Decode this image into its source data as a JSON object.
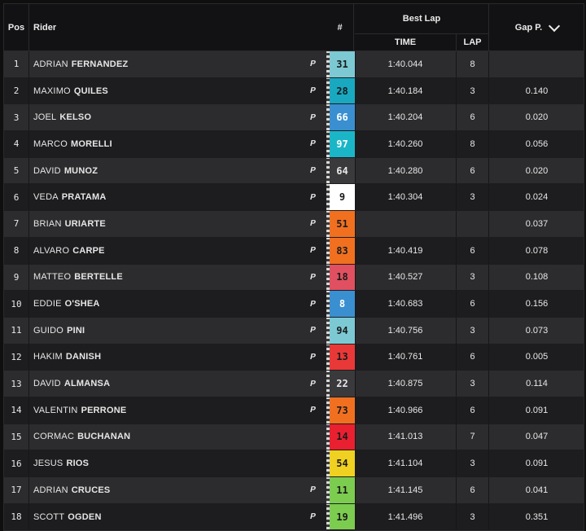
{
  "header": {
    "pos": "Pos",
    "rider": "Rider",
    "number": "#",
    "best_lap": "Best Lap",
    "time": "TIME",
    "lap": "LAP",
    "gap": "Gap P."
  },
  "tyre_symbol": "P",
  "riders": [
    {
      "pos": "1",
      "first": "ADRIAN",
      "last": "FERNANDEZ",
      "tyre": "P",
      "num": "31",
      "num_bg": "#7cc9d4",
      "num_fg": "#1a1a1a",
      "time": "1:40.044",
      "lap": "8",
      "gap": ""
    },
    {
      "pos": "2",
      "first": "MAXIMO",
      "last": "QUILES",
      "tyre": "P",
      "num": "28",
      "num_bg": "#1aa8c0",
      "num_fg": "#0f1a1c",
      "time": "1:40.184",
      "lap": "3",
      "gap": "0.140"
    },
    {
      "pos": "3",
      "first": "JOEL",
      "last": "KELSO",
      "tyre": "P",
      "num": "66",
      "num_bg": "#3a8fd0",
      "num_fg": "#ffffff",
      "time": "1:40.204",
      "lap": "6",
      "gap": "0.020"
    },
    {
      "pos": "4",
      "first": "MARCO",
      "last": "MORELLI",
      "tyre": "P",
      "num": "97",
      "num_bg": "#1ab6c8",
      "num_fg": "#ffffff",
      "time": "1:40.260",
      "lap": "8",
      "gap": "0.056"
    },
    {
      "pos": "5",
      "first": "DAVID",
      "last": "MUNOZ",
      "tyre": "P",
      "num": "64",
      "num_bg": "#3a3a3c",
      "num_fg": "#e8e8e8",
      "time": "1:40.280",
      "lap": "6",
      "gap": "0.020"
    },
    {
      "pos": "6",
      "first": "VEDA",
      "last": "PRATAMA",
      "tyre": "P",
      "num": "9",
      "num_bg": "#ffffff",
      "num_fg": "#1a1a1a",
      "time": "1:40.304",
      "lap": "3",
      "gap": "0.024"
    },
    {
      "pos": "7",
      "first": "BRIAN",
      "last": "URIARTE",
      "tyre": "P",
      "num": "51",
      "num_bg": "#f07020",
      "num_fg": "#1a1a1a",
      "time": "",
      "lap": "",
      "gap": "0.037"
    },
    {
      "pos": "8",
      "first": "ALVARO",
      "last": "CARPE",
      "tyre": "P",
      "num": "83",
      "num_bg": "#f07020",
      "num_fg": "#1a1a1a",
      "time": "1:40.419",
      "lap": "6",
      "gap": "0.078"
    },
    {
      "pos": "9",
      "first": "MATTEO",
      "last": "BERTELLE",
      "tyre": "P",
      "num": "18",
      "num_bg": "#e05060",
      "num_fg": "#1a1a1a",
      "time": "1:40.527",
      "lap": "3",
      "gap": "0.108"
    },
    {
      "pos": "10",
      "first": "EDDIE",
      "last": "O'SHEA",
      "tyre": "P",
      "num": "8",
      "num_bg": "#3a8fd0",
      "num_fg": "#ffffff",
      "time": "1:40.683",
      "lap": "6",
      "gap": "0.156"
    },
    {
      "pos": "11",
      "first": "GUIDO",
      "last": "PINI",
      "tyre": "P",
      "num": "94",
      "num_bg": "#7cc9d4",
      "num_fg": "#1a1a1a",
      "time": "1:40.756",
      "lap": "3",
      "gap": "0.073"
    },
    {
      "pos": "12",
      "first": "HAKIM",
      "last": "DANISH",
      "tyre": "P",
      "num": "13",
      "num_bg": "#e83838",
      "num_fg": "#1a1a1a",
      "time": "1:40.761",
      "lap": "6",
      "gap": "0.005"
    },
    {
      "pos": "13",
      "first": "DAVID",
      "last": "ALMANSA",
      "tyre": "P",
      "num": "22",
      "num_bg": "#3a3a3c",
      "num_fg": "#e8e8e8",
      "time": "1:40.875",
      "lap": "3",
      "gap": "0.114"
    },
    {
      "pos": "14",
      "first": "VALENTIN",
      "last": "PERRONE",
      "tyre": "P",
      "num": "73",
      "num_bg": "#f07020",
      "num_fg": "#1a1a1a",
      "time": "1:40.966",
      "lap": "6",
      "gap": "0.091"
    },
    {
      "pos": "15",
      "first": "CORMAC",
      "last": "BUCHANAN",
      "tyre": "",
      "num": "14",
      "num_bg": "#e82030",
      "num_fg": "#1a1a1a",
      "time": "1:41.013",
      "lap": "7",
      "gap": "0.047"
    },
    {
      "pos": "16",
      "first": "JESUS",
      "last": "RIOS",
      "tyre": "",
      "num": "54",
      "num_bg": "#f0d020",
      "num_fg": "#1a1a1a",
      "time": "1:41.104",
      "lap": "3",
      "gap": "0.091"
    },
    {
      "pos": "17",
      "first": "ADRIAN",
      "last": "CRUCES",
      "tyre": "P",
      "num": "11",
      "num_bg": "#7ccc50",
      "num_fg": "#1a1a1a",
      "time": "1:41.145",
      "lap": "6",
      "gap": "0.041"
    },
    {
      "pos": "18",
      "first": "SCOTT",
      "last": "OGDEN",
      "tyre": "P",
      "num": "19",
      "num_bg": "#7ccc50",
      "num_fg": "#1a1a1a",
      "time": "1:41.496",
      "lap": "3",
      "gap": "0.351"
    }
  ]
}
